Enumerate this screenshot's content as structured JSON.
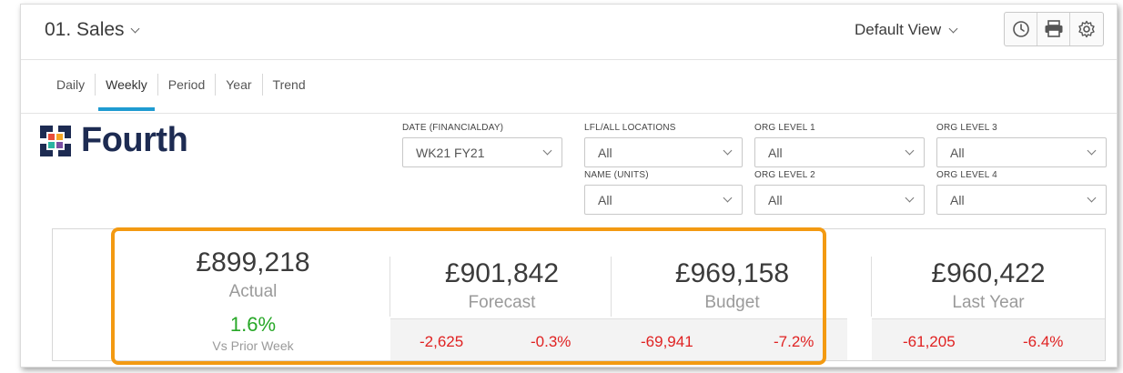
{
  "header": {
    "title": "01. Sales",
    "view_label": "Default View",
    "tools": [
      {
        "icon": "clock-icon"
      },
      {
        "icon": "print-icon"
      },
      {
        "icon": "gear-icon"
      }
    ]
  },
  "tabs": [
    {
      "label": "Daily",
      "active": false
    },
    {
      "label": "Weekly",
      "active": true
    },
    {
      "label": "Period",
      "active": false
    },
    {
      "label": "Year",
      "active": false
    },
    {
      "label": "Trend",
      "active": false
    }
  ],
  "logo": {
    "text": "Fourth",
    "icon": "fourth-logo-icon"
  },
  "filters": {
    "date": {
      "label": "DATE (FINANCIALDAY)",
      "value": "WK21 FY21"
    },
    "lfl": {
      "label": "LFL/ALL LOCATIONS",
      "value": "All"
    },
    "name": {
      "label": "NAME (UNITS)",
      "value": "All"
    },
    "org1": {
      "label": "ORG LEVEL 1",
      "value": "All"
    },
    "org2": {
      "label": "ORG LEVEL 2",
      "value": "All"
    },
    "org3": {
      "label": "ORG LEVEL 3",
      "value": "All"
    },
    "org4": {
      "label": "ORG LEVEL 4",
      "value": "All"
    }
  },
  "kpis": {
    "actual": {
      "value": "£899,218",
      "label": "Actual",
      "change": "1.6%",
      "change_label": "Vs Prior Week"
    },
    "forecast": {
      "value": "£901,842",
      "label": "Forecast",
      "var_abs": "-2,625",
      "var_pct": "-0.3%"
    },
    "budget": {
      "value": "£969,158",
      "label": "Budget",
      "var_abs": "-69,941",
      "var_pct": "-7.2%"
    },
    "last_year": {
      "value": "£960,422",
      "label": "Last Year",
      "var_abs": "-61,205",
      "var_pct": "-6.4%"
    }
  },
  "colors": {
    "accent": "#1f9bd1",
    "highlight": "#f39a12",
    "negative": "#e02222",
    "positive": "#28a828",
    "logo_text": "#1d2b52"
  }
}
